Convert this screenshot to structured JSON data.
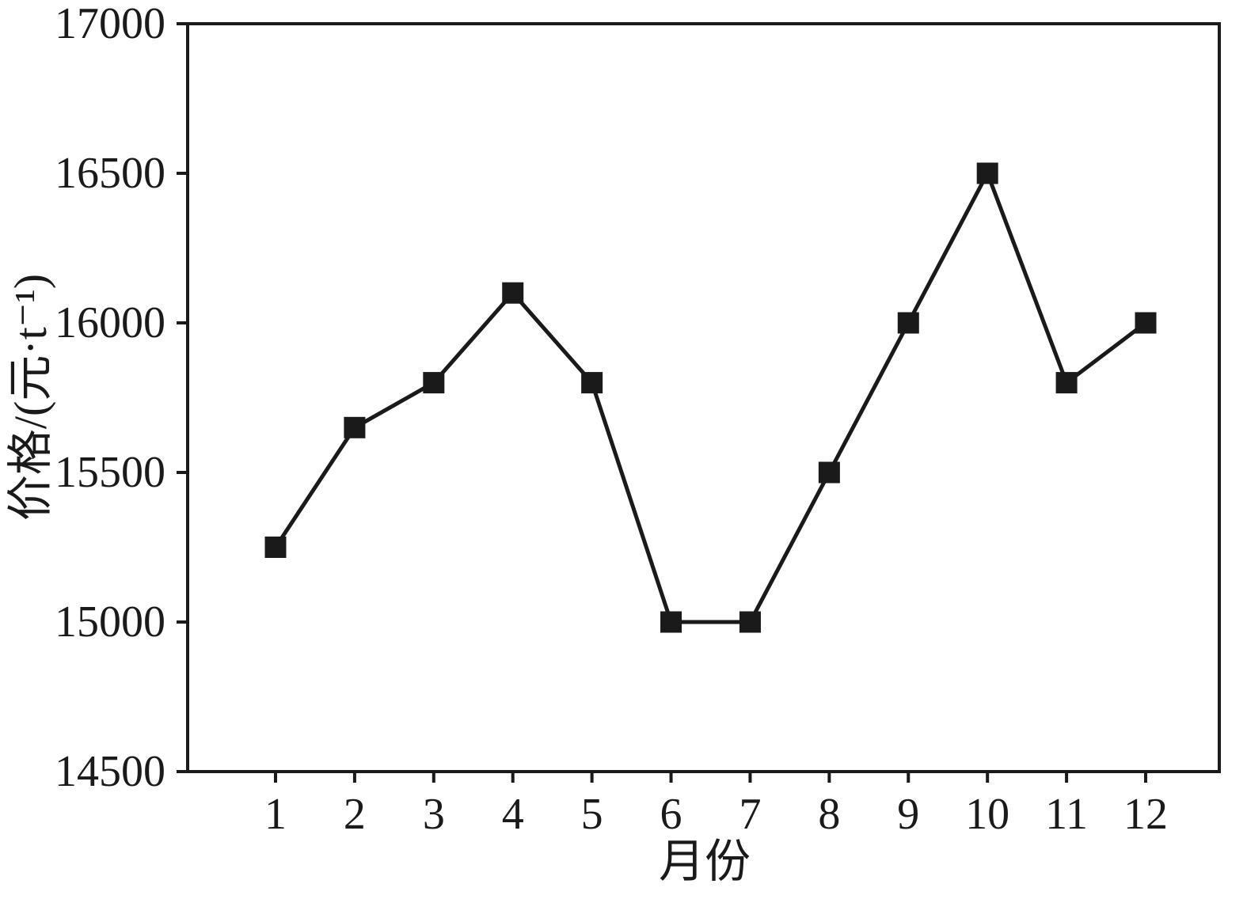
{
  "chart_data": {
    "type": "line",
    "x": [
      1,
      2,
      3,
      4,
      5,
      6,
      7,
      8,
      9,
      10,
      11,
      12
    ],
    "values": [
      15250,
      15650,
      15800,
      16100,
      15800,
      15000,
      15000,
      15500,
      16000,
      16500,
      15800,
      16000
    ],
    "title": "",
    "xlabel": "月份",
    "ylabel": "价格/(元·t⁻¹)",
    "ylim": [
      14500,
      17000
    ],
    "yticks": [
      14500,
      15000,
      15500,
      16000,
      16500,
      17000
    ],
    "grid": false,
    "legend": "none",
    "marker": "filled-square",
    "line_color": "#1a1a1a",
    "marker_color": "#1a1a1a",
    "background": "#ffffff"
  }
}
